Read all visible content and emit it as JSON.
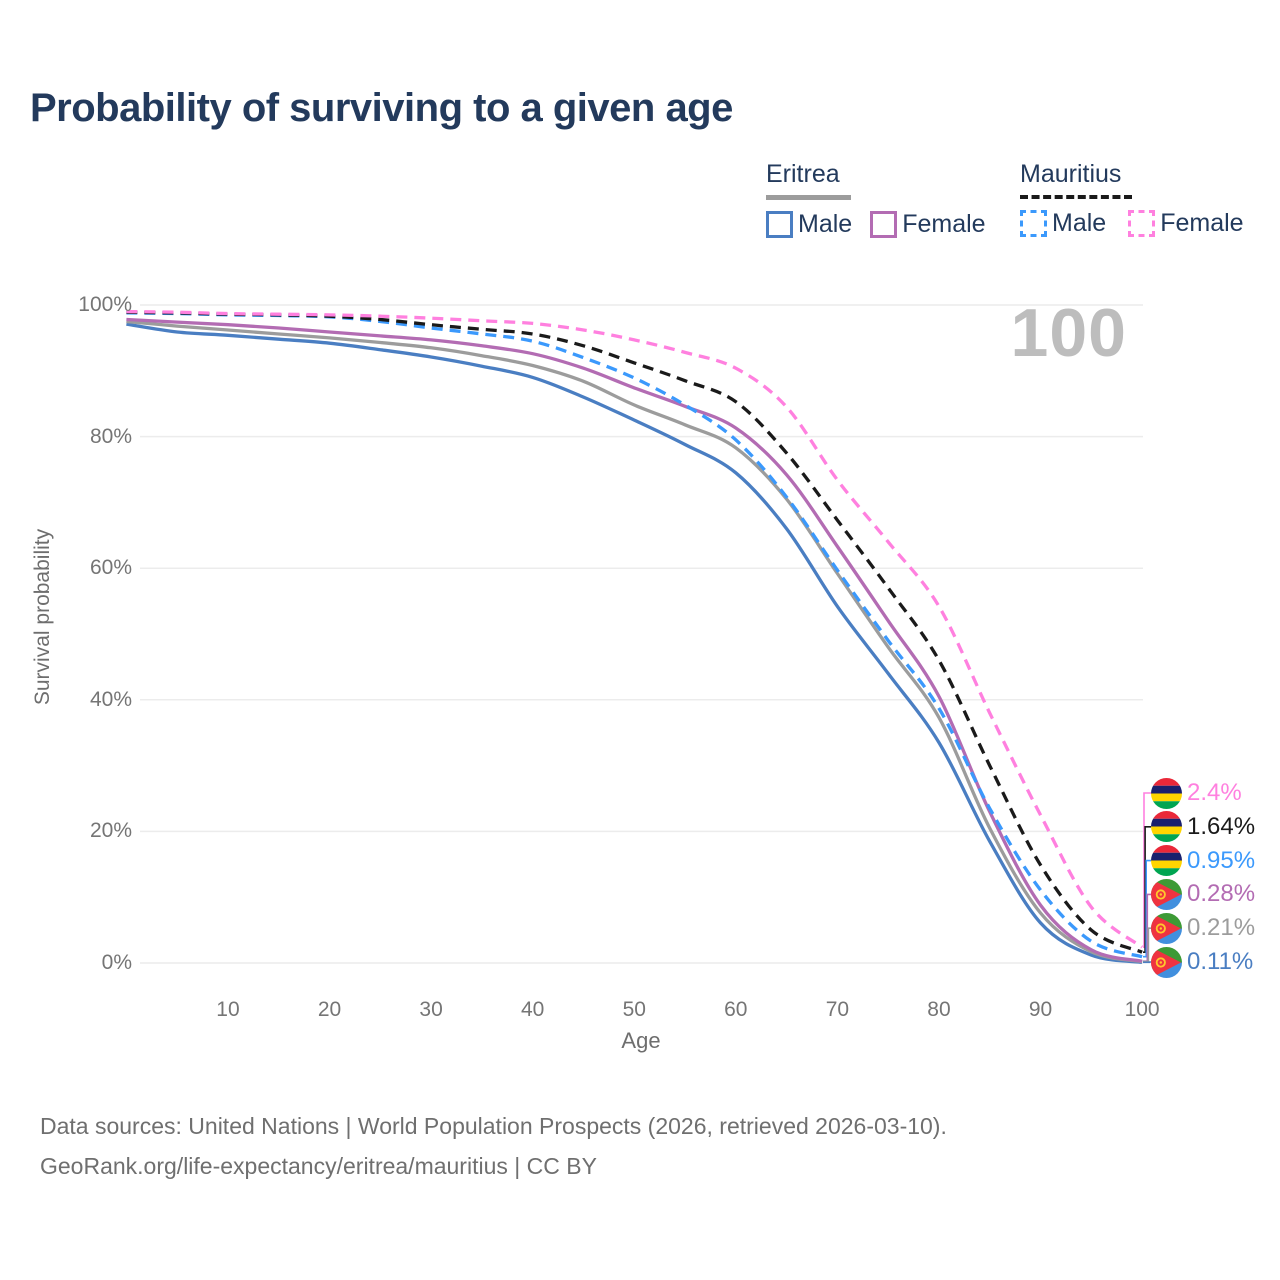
{
  "title": "Probability of surviving to a given age",
  "watermark": "100",
  "legend": {
    "groups": [
      {
        "country": "Eritrea",
        "line_style": "solid",
        "underline_color": "#9c9c9c",
        "items": [
          {
            "label": "Male",
            "color": "#4a7ec2"
          },
          {
            "label": "Female",
            "color": "#b36cb3"
          }
        ]
      },
      {
        "country": "Mauritius",
        "line_style": "dashed",
        "underline_color": "#1a1a1a",
        "items": [
          {
            "label": "Male",
            "color": "#3b99fc"
          },
          {
            "label": "Female",
            "color": "#ff80df"
          }
        ]
      }
    ]
  },
  "axes": {
    "y_title": "Survival probability",
    "x_title": "Age",
    "y_ticks": [
      {
        "label": "0%",
        "value": 0
      },
      {
        "label": "20%",
        "value": 20
      },
      {
        "label": "40%",
        "value": 40
      },
      {
        "label": "60%",
        "value": 60
      },
      {
        "label": "80%",
        "value": 80
      },
      {
        "label": "100%",
        "value": 100
      }
    ],
    "x_ticks": [
      {
        "label": "10",
        "value": 10
      },
      {
        "label": "20",
        "value": 20
      },
      {
        "label": "30",
        "value": 30
      },
      {
        "label": "40",
        "value": 40
      },
      {
        "label": "50",
        "value": 50
      },
      {
        "label": "60",
        "value": 60
      },
      {
        "label": "70",
        "value": 70
      },
      {
        "label": "80",
        "value": 80
      },
      {
        "label": "90",
        "value": 90
      },
      {
        "label": "100",
        "value": 100
      }
    ]
  },
  "caption": {
    "line1": "Data sources: United Nations | World Population Prospects (2026, retrieved 2026-03-10).",
    "line2": "GeoRank.org/life-expectancy/eritrea/mauritius | CC BY"
  },
  "colors": {
    "title": "#233a5c",
    "grid": "#ececec",
    "axis_text": "#757575",
    "caption": "#6f6f6f",
    "watermark": "#bdbdbd"
  },
  "flags": {
    "mauritius": {
      "red": "#EA2839",
      "blue": "#1A206D",
      "yellow": "#FFD500",
      "green": "#00A551"
    },
    "eritrea": {
      "green": "#3D9A35",
      "blue": "#418FDE",
      "red": "#EF3340",
      "gold": "#FFC72C"
    }
  },
  "chart_data": {
    "type": "line",
    "title": "Probability of surviving to a given age",
    "xlabel": "Age",
    "ylabel": "Survival probability",
    "xlim": [
      0,
      100
    ],
    "ylim": [
      0,
      100
    ],
    "grid": true,
    "x": [
      0,
      5,
      10,
      15,
      20,
      25,
      30,
      35,
      40,
      45,
      50,
      55,
      60,
      65,
      70,
      75,
      80,
      85,
      90,
      95,
      100
    ],
    "series": [
      {
        "name": "Mauritius Female",
        "country": "Mauritius",
        "sex": "Female",
        "color": "#ff80df",
        "dashed": true,
        "end_label": "2.4%",
        "values": [
          99.0,
          98.9,
          98.7,
          98.6,
          98.5,
          98.3,
          98.0,
          97.6,
          97.2,
          96.2,
          94.7,
          92.8,
          90.4,
          84.5,
          73.4,
          64.0,
          54.2,
          38.0,
          22.5,
          8.5,
          2.4
        ]
      },
      {
        "name": "Mauritius Both sexes",
        "country": "Mauritius",
        "sex": "Both",
        "color": "#1a1a1a",
        "dashed": true,
        "end_label": "1.64%",
        "values": [
          98.9,
          98.8,
          98.6,
          98.5,
          98.3,
          97.8,
          97.0,
          96.3,
          95.6,
          93.8,
          91.2,
          88.5,
          85.3,
          77.5,
          67.3,
          57.0,
          46.0,
          30.0,
          14.9,
          5.0,
          1.64
        ]
      },
      {
        "name": "Mauritius Male",
        "country": "Mauritius",
        "sex": "Male",
        "color": "#3b99fc",
        "dashed": true,
        "end_label": "0.95%",
        "values": [
          98.8,
          98.7,
          98.5,
          98.4,
          98.2,
          97.5,
          96.5,
          95.6,
          94.5,
          92.0,
          88.9,
          84.8,
          79.5,
          70.8,
          59.7,
          49.0,
          38.7,
          23.5,
          11.1,
          3.3,
          0.95
        ]
      },
      {
        "name": "Eritrea Female",
        "country": "Eritrea",
        "sex": "Female",
        "color": "#b36cb3",
        "dashed": false,
        "end_label": "0.28%",
        "values": [
          97.8,
          97.4,
          97.0,
          96.5,
          95.9,
          95.3,
          94.7,
          93.8,
          92.6,
          90.4,
          87.4,
          84.6,
          81.3,
          74.2,
          63.3,
          52.0,
          40.5,
          23.0,
          8.8,
          2.0,
          0.28
        ]
      },
      {
        "name": "Eritrea Both sexes",
        "country": "Eritrea",
        "sex": "Both",
        "color": "#9c9c9c",
        "dashed": false,
        "end_label": "0.21%",
        "values": [
          97.5,
          96.8,
          96.2,
          95.6,
          95.0,
          94.3,
          93.5,
          92.3,
          90.8,
          88.4,
          84.8,
          81.8,
          78.3,
          70.5,
          59.2,
          48.0,
          37.3,
          20.5,
          7.6,
          1.7,
          0.21
        ]
      },
      {
        "name": "Eritrea Male",
        "country": "Eritrea",
        "sex": "Male",
        "color": "#4a7ec2",
        "dashed": false,
        "end_label": "0.11%",
        "values": [
          97.1,
          95.9,
          95.4,
          94.8,
          94.2,
          93.2,
          92.1,
          90.7,
          89.0,
          86.0,
          82.5,
          78.8,
          74.5,
          66.0,
          54.2,
          44.0,
          33.5,
          18.5,
          6.1,
          1.2,
          0.11
        ]
      }
    ]
  }
}
